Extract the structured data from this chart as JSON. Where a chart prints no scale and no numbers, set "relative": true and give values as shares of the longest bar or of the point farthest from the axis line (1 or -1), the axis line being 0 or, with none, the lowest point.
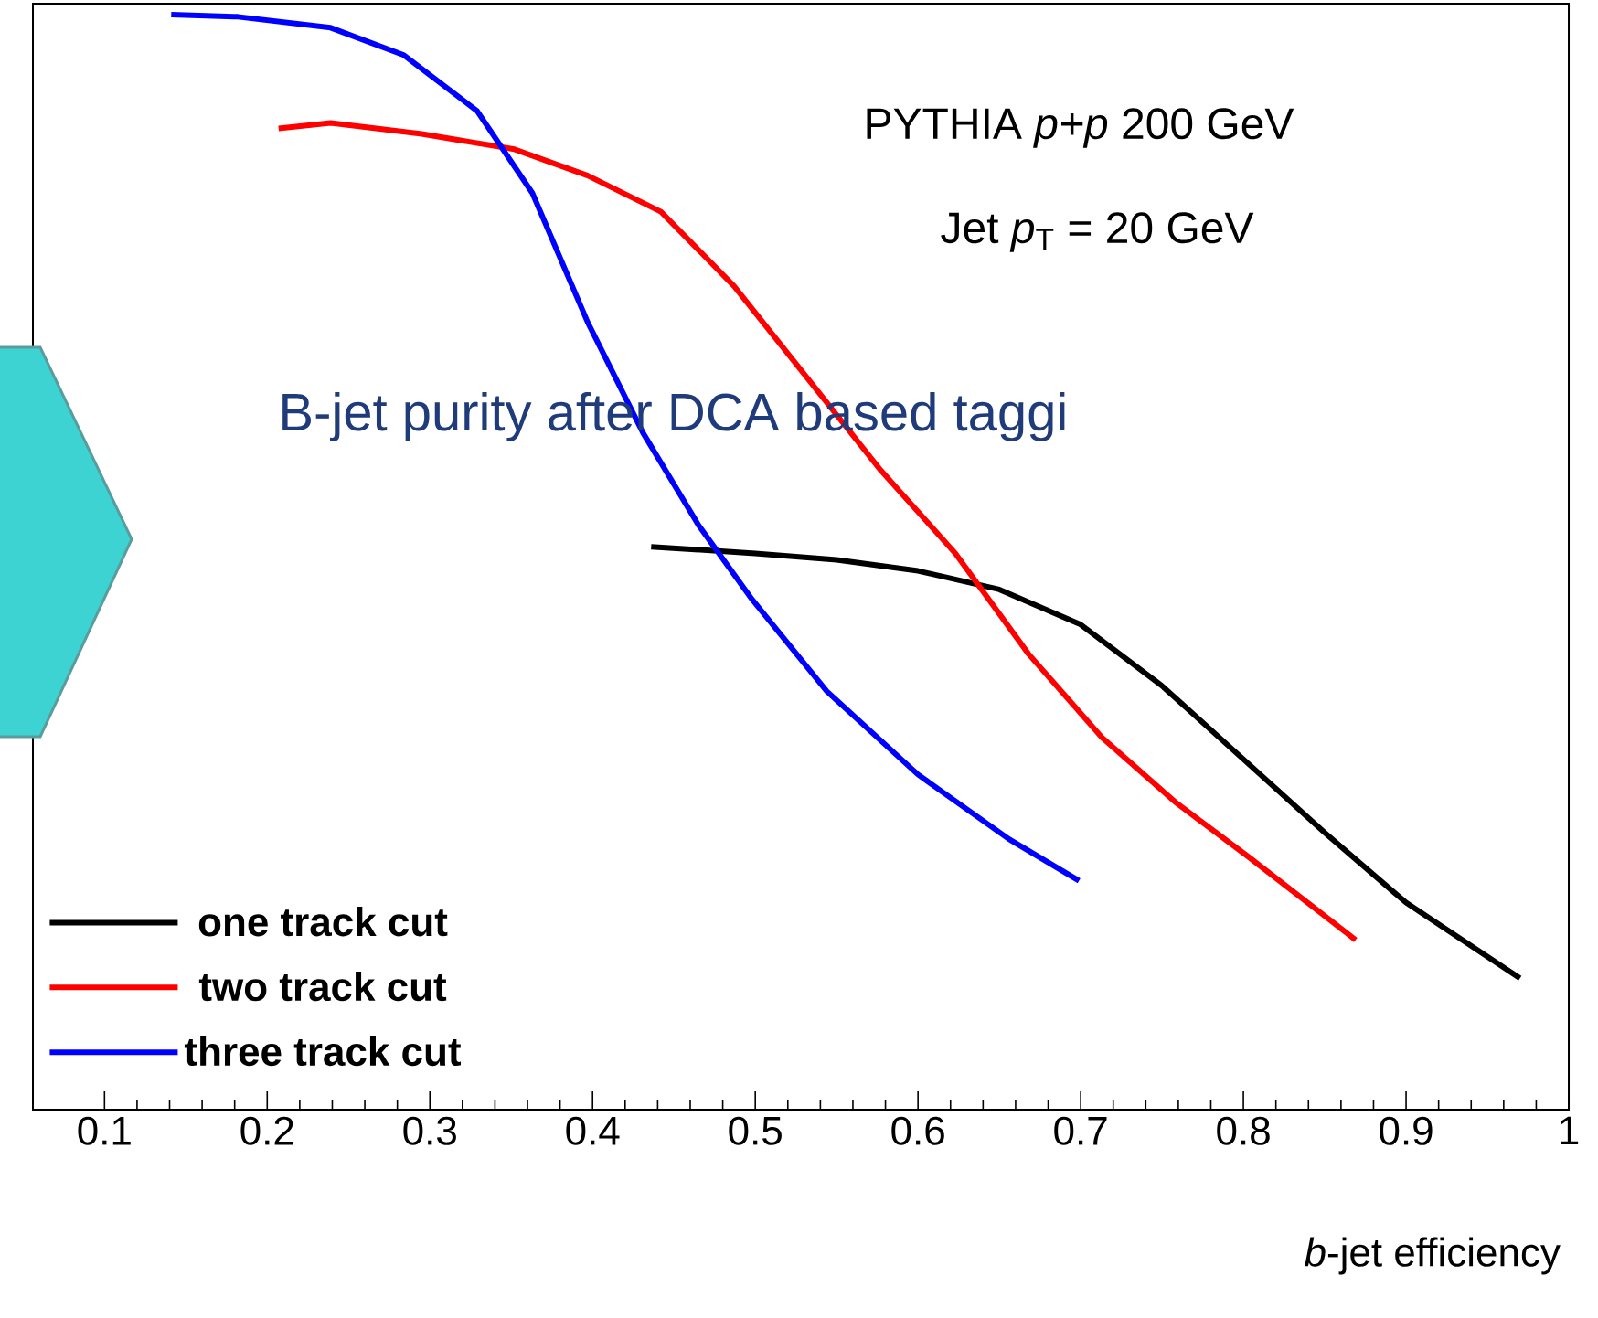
{
  "chart_data": {
    "type": "line",
    "relative": true,
    "xlabel": "*b*-jet efficiency",
    "xlim": [
      0.056,
      1.0
    ],
    "xticks": [
      0.1,
      0.2,
      0.3,
      0.4,
      0.5,
      0.6,
      0.7,
      0.8,
      0.9,
      1
    ],
    "annotations": [
      "PYTHIA *p+p* 200 GeV",
      "Jet *p*$_{T}$ = 20 GeV",
      "B-jet purity after DCA based taggi"
    ],
    "legend": "bottom left",
    "grid": false,
    "series": [
      {
        "name": "one track cut",
        "color": "#000000",
        "x": [
          0.436,
          0.5,
          0.55,
          0.6,
          0.65,
          0.7,
          0.75,
          0.8,
          0.85,
          0.9,
          0.97
        ],
        "values": [
          0.514,
          0.508,
          0.502,
          0.492,
          0.475,
          0.443,
          0.387,
          0.32,
          0.253,
          0.189,
          0.12
        ]
      },
      {
        "name": "two track cut",
        "color": "#ff0000",
        "x": [
          0.207,
          0.239,
          0.295,
          0.352,
          0.397,
          0.442,
          0.487,
          0.532,
          0.577,
          0.623,
          0.668,
          0.713,
          0.758,
          0.803,
          0.869
        ],
        "values": [
          0.896,
          0.901,
          0.891,
          0.877,
          0.853,
          0.82,
          0.752,
          0.668,
          0.584,
          0.508,
          0.416,
          0.34,
          0.281,
          0.231,
          0.155
        ]
      },
      {
        "name": "three track cut",
        "color": "#0000ff",
        "x": [
          0.141,
          0.182,
          0.239,
          0.284,
          0.329,
          0.363,
          0.397,
          0.431,
          0.465,
          0.498,
          0.544,
          0.6,
          0.656,
          0.699
        ],
        "values": [
          1.0,
          0.998,
          0.988,
          0.963,
          0.912,
          0.837,
          0.719,
          0.618,
          0.534,
          0.466,
          0.382,
          0.306,
          0.247,
          0.209
        ]
      }
    ]
  }
}
